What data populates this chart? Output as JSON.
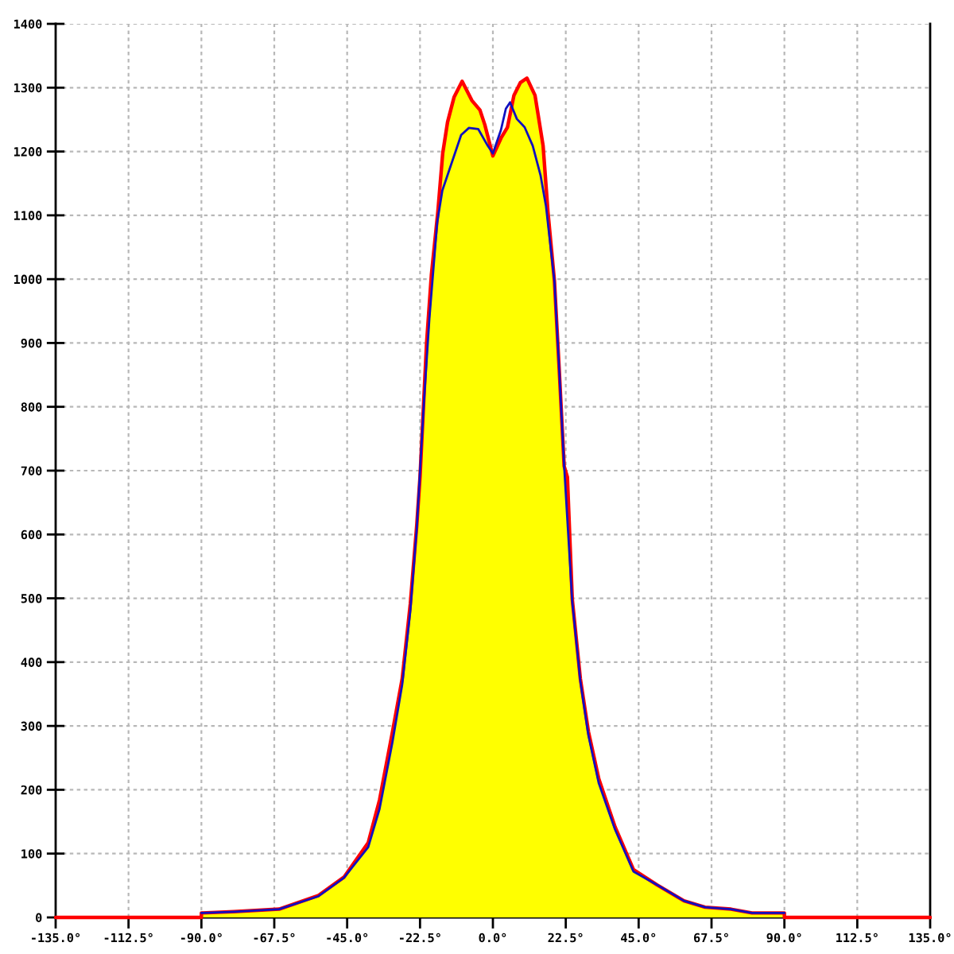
{
  "chart_data": {
    "type": "area",
    "xlim": [
      -135,
      135
    ],
    "xticks": [
      {
        "value": -135,
        "label": "-135.0°"
      },
      {
        "value": -112.5,
        "label": "-112.5°"
      },
      {
        "value": -90,
        "label": "-90.0°"
      },
      {
        "value": -67.5,
        "label": "-67.5°"
      },
      {
        "value": -45,
        "label": "-45.0°"
      },
      {
        "value": -22.5,
        "label": "-22.5°"
      },
      {
        "value": 0,
        "label": "0.0°"
      },
      {
        "value": 22.5,
        "label": "22.5°"
      },
      {
        "value": 45,
        "label": "45.0°"
      },
      {
        "value": 67.5,
        "label": "67.5°"
      },
      {
        "value": 90,
        "label": "90.0°"
      },
      {
        "value": 112.5,
        "label": "112.5°"
      },
      {
        "value": 135,
        "label": "135.0°"
      }
    ],
    "ylim": [
      0,
      1400
    ],
    "yticks": [
      0,
      100,
      200,
      300,
      400,
      500,
      600,
      700,
      800,
      900,
      1000,
      1100,
      1200,
      1300,
      1400
    ],
    "grid": true,
    "series": [
      {
        "color": "#ffff00",
        "x": [
          -90,
          -80,
          -66,
          -54,
          -46,
          -38.5,
          -35,
          -31,
          -28,
          -25.5,
          -23.5,
          -22.5,
          -20.5,
          -19,
          -17,
          -15.5,
          -14,
          -12,
          -9.5,
          -6.5,
          -4,
          -2.5,
          0,
          2.5,
          4.5,
          6.5,
          8.5,
          10.5,
          13,
          15.5,
          17,
          19,
          20.5,
          22,
          23,
          24.5,
          27,
          29.5,
          32.7,
          37.7,
          43.4,
          50.7,
          59,
          65.5,
          73.5,
          80,
          90
        ],
        "values": [
          7,
          9,
          13,
          34,
          63,
          117,
          184,
          291,
          374,
          491,
          615,
          690,
          898,
          1006,
          1105,
          1197,
          1246,
          1285,
          1310,
          1280,
          1265,
          1242,
          1193,
          1221,
          1238,
          1288,
          1308,
          1315,
          1288,
          1209,
          1105,
          997,
          856,
          707,
          690,
          499,
          374,
          291,
          217,
          142,
          75,
          51,
          26,
          16,
          13,
          7,
          7
        ]
      },
      {
        "type": "line",
        "color": "#ff0000",
        "x": [
          -135,
          -90,
          -90,
          -80,
          -66,
          -54,
          -46,
          -38.5,
          -35,
          -31,
          -28,
          -25.5,
          -23.5,
          -22.5,
          -20.5,
          -19,
          -17,
          -15.5,
          -14,
          -12,
          -9.5,
          -6.5,
          -4,
          -2.5,
          0,
          2.5,
          4.5,
          6.5,
          8.5,
          10.5,
          13,
          15.5,
          17,
          19,
          20.5,
          22,
          23,
          24.5,
          27,
          29.5,
          32.7,
          37.7,
          43.4,
          50.7,
          59,
          65.5,
          73.5,
          80,
          90,
          90,
          135
        ],
        "values": [
          0,
          0,
          7,
          9,
          13,
          34,
          63,
          117,
          184,
          291,
          374,
          491,
          615,
          690,
          898,
          1006,
          1105,
          1197,
          1246,
          1285,
          1310,
          1280,
          1265,
          1242,
          1193,
          1221,
          1238,
          1288,
          1308,
          1315,
          1288,
          1209,
          1105,
          997,
          856,
          707,
          690,
          499,
          374,
          291,
          217,
          142,
          75,
          51,
          26,
          16,
          13,
          7,
          7,
          0,
          0
        ]
      },
      {
        "type": "line",
        "color": "#1010c0",
        "x": [
          -90,
          -80,
          -66,
          -54,
          -46,
          -38.5,
          -35,
          -31,
          -28,
          -25.5,
          -23.5,
          -21.3,
          -19.6,
          -17.2,
          -15.6,
          -14,
          -9.8,
          -7.4,
          -4.5,
          -1.6,
          0,
          2.5,
          4,
          5.3,
          7.4,
          9.8,
          12.3,
          14.7,
          16.4,
          19,
          20.5,
          22,
          24.5,
          27,
          29.5,
          32.7,
          37.7,
          43.4,
          50.7,
          59,
          65.5,
          73.5,
          80,
          90
        ],
        "values": [
          7,
          9,
          13,
          33,
          62,
          110,
          170,
          275,
          365,
          480,
          610,
          807,
          939,
          1089,
          1139,
          1163,
          1226,
          1237,
          1235,
          1209,
          1197,
          1234,
          1267,
          1277,
          1251,
          1238,
          1209,
          1163,
          1114,
          997,
          856,
          707,
          495,
          370,
          285,
          210,
          138,
          72,
          51,
          26,
          16,
          13,
          7,
          7
        ]
      }
    ]
  }
}
